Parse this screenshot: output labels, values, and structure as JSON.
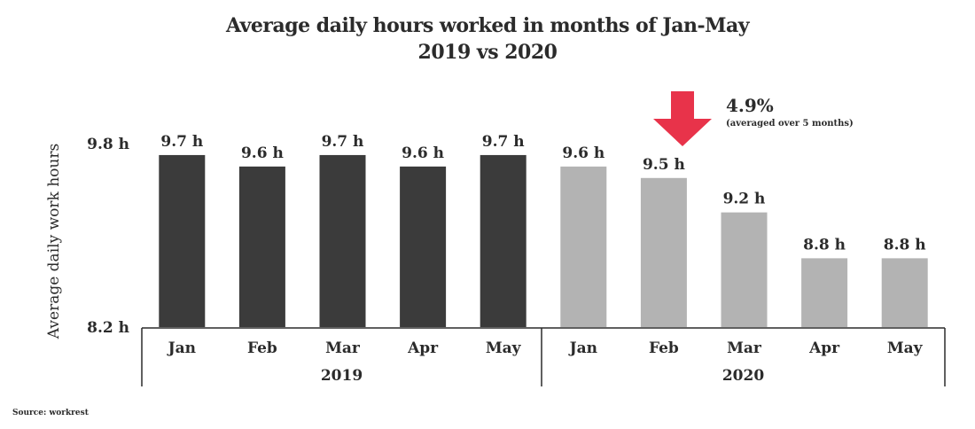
{
  "chart_data": {
    "type": "bar",
    "title": "Average daily hours worked in months of Jan-May",
    "subtitle": "2019 vs 2020",
    "ylabel": "Average daily work hours",
    "ylim": [
      8.2,
      9.8
    ],
    "ytick_labels": [
      "9.8 h",
      "8.2 h"
    ],
    "categories": [
      "Jan",
      "Feb",
      "Mar",
      "Apr",
      "May",
      "Jan",
      "Feb",
      "Mar",
      "Apr",
      "May"
    ],
    "groups": [
      {
        "label": "2019",
        "color": "#3b3b3b",
        "months": [
          "Jan",
          "Feb",
          "Mar",
          "Apr",
          "May"
        ],
        "values": [
          9.7,
          9.6,
          9.7,
          9.6,
          9.7
        ],
        "labels": [
          "9.7 h",
          "9.6 h",
          "9.7 h",
          "9.6 h",
          "9.7 h"
        ]
      },
      {
        "label": "2020",
        "color": "#b3b3b3",
        "months": [
          "Jan",
          "Feb",
          "Mar",
          "Apr",
          "May"
        ],
        "values": [
          9.6,
          9.5,
          9.2,
          8.8,
          8.8
        ],
        "labels": [
          "9.6 h",
          "9.5 h",
          "9.2 h",
          "8.8 h",
          "8.8 h"
        ]
      }
    ],
    "annotation": {
      "value": "4.9%",
      "note": "(averaged over 5 months)",
      "arrow_color": "#e8334a"
    }
  },
  "source": "Source: workrest"
}
